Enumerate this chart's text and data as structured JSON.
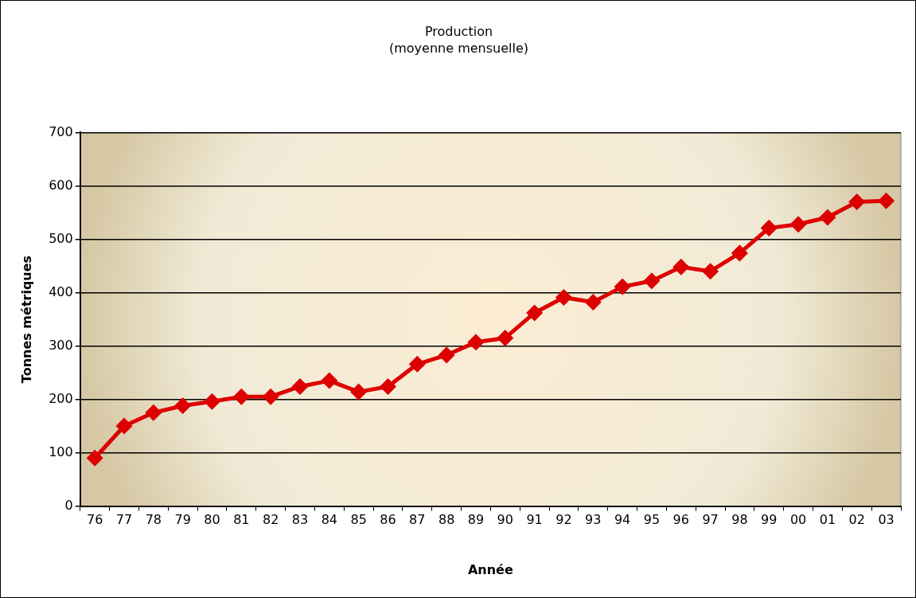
{
  "chart_data": {
    "type": "line",
    "title": "Production",
    "subtitle": "(moyenne mensuelle)",
    "xlabel": "Année",
    "ylabel": "Tonnes métriques",
    "categories": [
      "76",
      "77",
      "78",
      "79",
      "80",
      "81",
      "82",
      "83",
      "84",
      "85",
      "86",
      "87",
      "88",
      "89",
      "90",
      "91",
      "92",
      "93",
      "94",
      "95",
      "96",
      "97",
      "98",
      "99",
      "00",
      "01",
      "02",
      "03"
    ],
    "series": [
      {
        "color": "#dd0000",
        "values": [
          90,
          150,
          175,
          188,
          196,
          205,
          205,
          224,
          235,
          214,
          224,
          266,
          283,
          307,
          315,
          362,
          391,
          382,
          411,
          422,
          448,
          440,
          474,
          521,
          528,
          541,
          570,
          572
        ]
      }
    ],
    "ylim": [
      0,
      700
    ],
    "yticks": [
      0,
      100,
      200,
      300,
      400,
      500,
      600,
      700
    ],
    "grid": "y",
    "legend": false,
    "marker": "diamond",
    "line_style": "solid"
  }
}
